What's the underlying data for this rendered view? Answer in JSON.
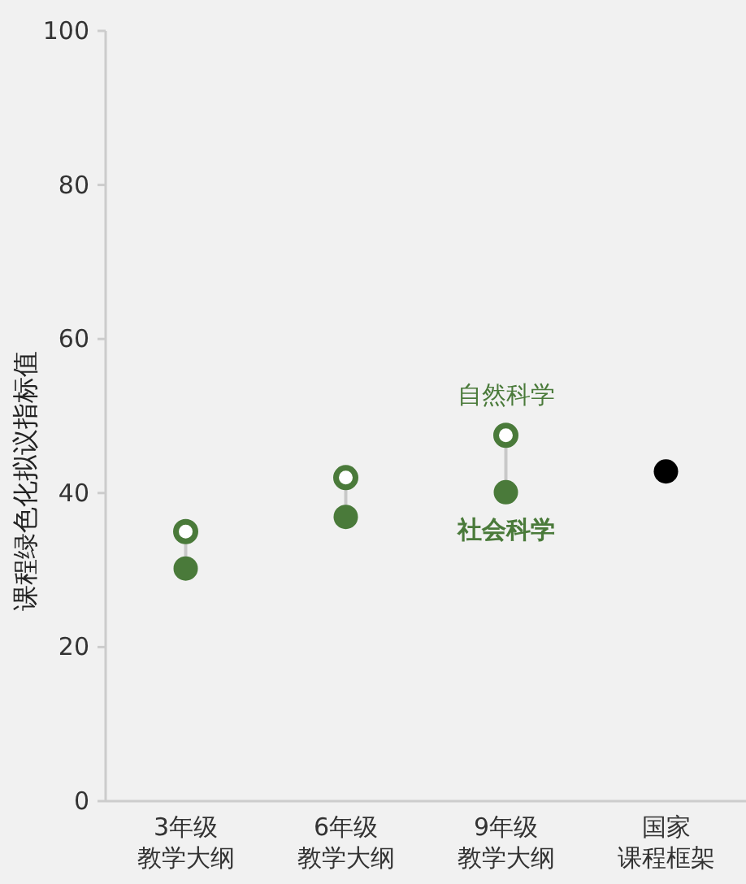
{
  "chart_data": {
    "type": "scatter",
    "ylabel": "课程绿色化拟议指标值",
    "categories": [
      "3年级教学大纲",
      "6年级教学大纲",
      "9年级教学大纲",
      "国家课程框架"
    ],
    "series": [
      {
        "name": "自然科学",
        "color": "#4a7a3a",
        "values": [
          35.0,
          42.0,
          47.5,
          null
        ]
      },
      {
        "name": "社会科学",
        "color": "#4a7a3a",
        "values": [
          30.2,
          36.9,
          40.1,
          null
        ]
      },
      {
        "color": "#000000",
        "values": [
          null,
          null,
          null,
          42.8
        ]
      }
    ],
    "ylim": [
      0,
      100
    ],
    "yticks": [
      0,
      20,
      40,
      60,
      80,
      100
    ],
    "marker": "circle",
    "grid": false,
    "legend": false
  }
}
